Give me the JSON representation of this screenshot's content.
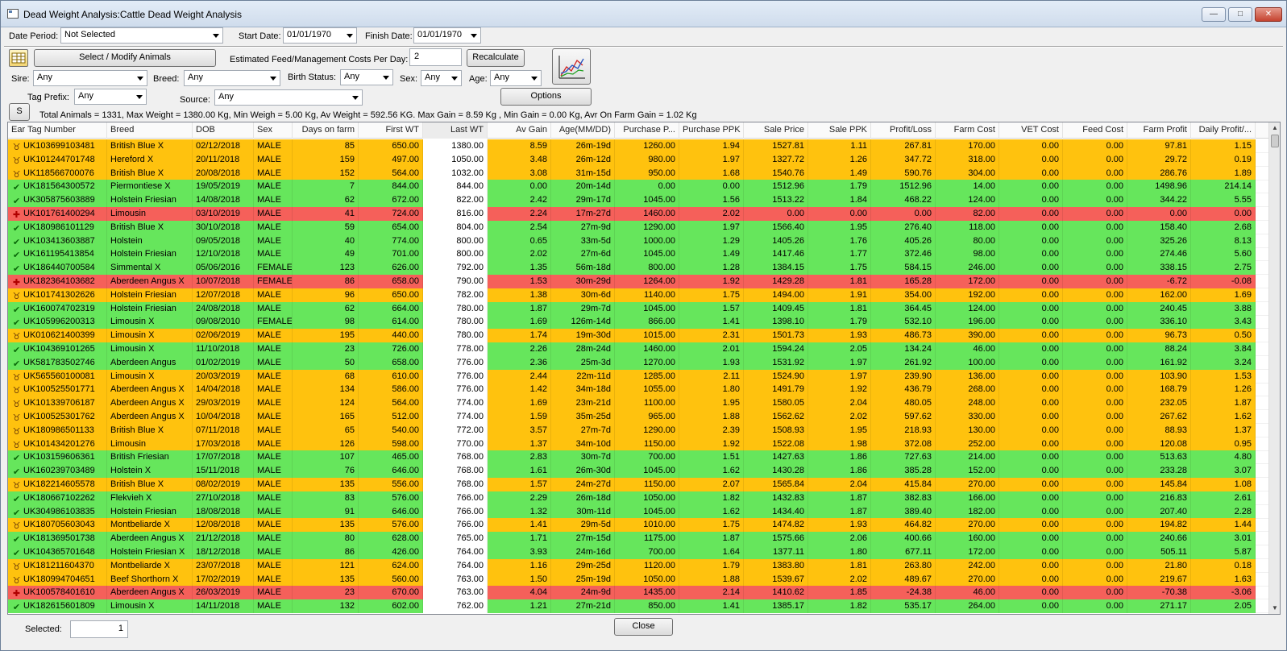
{
  "window": {
    "title": "Dead Weight Analysis:Cattle Dead Weight Analysis",
    "minimize_label": "—",
    "maximize_label": "□",
    "close_label": "✕"
  },
  "filters": {
    "date_period_label": "Date Period:",
    "date_period_value": "Not Selected",
    "start_date_label": "Start Date:",
    "start_date_value": "01/01/1970",
    "finish_date_label": "Finish Date:",
    "finish_date_value": "01/01/1970",
    "select_modify_label": "Select / Modify Animals",
    "est_costs_label": "Estimated Feed/Management Costs Per Day:",
    "est_costs_value": "2",
    "recalculate_label": "Recalculate",
    "sire_label": "Sire:",
    "sire_value": "Any",
    "breed_label": "Breed:",
    "breed_value": "Any",
    "birth_status_label": "Birth Status:",
    "birth_status_value": "Any",
    "sex_label": "Sex:",
    "sex_value": "Any",
    "age_label": "Age:",
    "age_value": "Any",
    "tag_prefix_label": "Tag Prefix:",
    "tag_prefix_value": "Any",
    "source_label": "Source:",
    "source_value": "Any",
    "options_label": "Options",
    "s_label": "S",
    "summary": "Total Animals = 1331, Max Weight = 1380.00 Kg, Min Weigh = 5.00 Kg, Av Weight = 592.56 KG. Max Gain = 8.59 Kg , Min Gain = 0.00 Kg, Avr On Farm Gain = 1.02 Kg"
  },
  "grid": {
    "columns": [
      "Ear Tag Number",
      "Breed",
      "DOB",
      "Sex",
      "Days on farm",
      "First WT",
      "Last WT",
      "Av Gain",
      "Age(MM/DD)",
      "Purchase P...",
      "Purchase PPK",
      "Sale Price",
      "Sale PPK",
      "Profit/Loss",
      "Farm Cost",
      "VET Cost",
      "Feed Cost",
      "Farm Profit",
      "Daily Profit/..."
    ],
    "colors": {
      "orange": "#ffc20e",
      "green": "#66e65c",
      "red": "#f5605a"
    },
    "rows": [
      {
        "s": "orange",
        "i": "cow",
        "c": [
          "UK103699103481",
          "British Blue X",
          "02/12/2018",
          "MALE",
          "85",
          "650.00",
          "1380.00",
          "8.59",
          "26m-19d",
          "1260.00",
          "1.94",
          "1527.81",
          "1.11",
          "267.81",
          "170.00",
          "0.00",
          "0.00",
          "97.81",
          "1.15"
        ]
      },
      {
        "s": "orange",
        "i": "cow",
        "c": [
          "UK101244701748",
          "Hereford X",
          "20/11/2018",
          "MALE",
          "159",
          "497.00",
          "1050.00",
          "3.48",
          "26m-12d",
          "980.00",
          "1.97",
          "1327.72",
          "1.26",
          "347.72",
          "318.00",
          "0.00",
          "0.00",
          "29.72",
          "0.19"
        ]
      },
      {
        "s": "orange",
        "i": "cow",
        "c": [
          "UK118566700076",
          "British Blue X",
          "20/08/2018",
          "MALE",
          "152",
          "564.00",
          "1032.00",
          "3.08",
          "31m-15d",
          "950.00",
          "1.68",
          "1540.76",
          "1.49",
          "590.76",
          "304.00",
          "0.00",
          "0.00",
          "286.76",
          "1.89"
        ]
      },
      {
        "s": "green",
        "i": "check",
        "c": [
          "UK181564300572",
          "Piermontiese X",
          "19/05/2019",
          "MALE",
          "7",
          "844.00",
          "844.00",
          "0.00",
          "20m-14d",
          "0.00",
          "0.00",
          "1512.96",
          "1.79",
          "1512.96",
          "14.00",
          "0.00",
          "0.00",
          "1498.96",
          "214.14"
        ]
      },
      {
        "s": "green",
        "i": "check",
        "c": [
          "UK305875603889",
          "Holstein Friesian",
          "14/08/2018",
          "MALE",
          "62",
          "672.00",
          "822.00",
          "2.42",
          "29m-17d",
          "1045.00",
          "1.56",
          "1513.22",
          "1.84",
          "468.22",
          "124.00",
          "0.00",
          "0.00",
          "344.22",
          "5.55"
        ]
      },
      {
        "s": "red",
        "i": "dead",
        "c": [
          "UK101761400294",
          "Limousin",
          "03/10/2019",
          "MALE",
          "41",
          "724.00",
          "816.00",
          "2.24",
          "17m-27d",
          "1460.00",
          "2.02",
          "0.00",
          "0.00",
          "0.00",
          "82.00",
          "0.00",
          "0.00",
          "0.00",
          "0.00"
        ]
      },
      {
        "s": "green",
        "i": "check",
        "c": [
          "UK180986101129",
          "British Blue X",
          "30/10/2018",
          "MALE",
          "59",
          "654.00",
          "804.00",
          "2.54",
          "27m-9d",
          "1290.00",
          "1.97",
          "1566.40",
          "1.95",
          "276.40",
          "118.00",
          "0.00",
          "0.00",
          "158.40",
          "2.68"
        ]
      },
      {
        "s": "green",
        "i": "check",
        "c": [
          "UK103413603887",
          "Holstein",
          "09/05/2018",
          "MALE",
          "40",
          "774.00",
          "800.00",
          "0.65",
          "33m-5d",
          "1000.00",
          "1.29",
          "1405.26",
          "1.76",
          "405.26",
          "80.00",
          "0.00",
          "0.00",
          "325.26",
          "8.13"
        ]
      },
      {
        "s": "green",
        "i": "check",
        "c": [
          "UK161195413854",
          "Holstein Friesian",
          "12/10/2018",
          "MALE",
          "49",
          "701.00",
          "800.00",
          "2.02",
          "27m-6d",
          "1045.00",
          "1.49",
          "1417.46",
          "1.77",
          "372.46",
          "98.00",
          "0.00",
          "0.00",
          "274.46",
          "5.60"
        ]
      },
      {
        "s": "green",
        "i": "check",
        "c": [
          "UK186440700584",
          "Simmental X",
          "05/06/2016",
          "FEMALE",
          "123",
          "626.00",
          "792.00",
          "1.35",
          "56m-18d",
          "800.00",
          "1.28",
          "1384.15",
          "1.75",
          "584.15",
          "246.00",
          "0.00",
          "0.00",
          "338.15",
          "2.75"
        ]
      },
      {
        "s": "red",
        "i": "dead",
        "c": [
          "UK182364103682",
          "Aberdeen Angus X",
          "10/07/2018",
          "FEMALE",
          "86",
          "658.00",
          "790.00",
          "1.53",
          "30m-29d",
          "1264.00",
          "1.92",
          "1429.28",
          "1.81",
          "165.28",
          "172.00",
          "0.00",
          "0.00",
          "-6.72",
          "-0.08"
        ]
      },
      {
        "s": "orange",
        "i": "cow",
        "c": [
          "UK101741302626",
          "Holstein Friesian",
          "12/07/2018",
          "MALE",
          "96",
          "650.00",
          "782.00",
          "1.38",
          "30m-6d",
          "1140.00",
          "1.75",
          "1494.00",
          "1.91",
          "354.00",
          "192.00",
          "0.00",
          "0.00",
          "162.00",
          "1.69"
        ]
      },
      {
        "s": "green",
        "i": "check",
        "c": [
          "UK160074702319",
          "Holstein Friesian",
          "24/08/2018",
          "MALE",
          "62",
          "664.00",
          "780.00",
          "1.87",
          "29m-7d",
          "1045.00",
          "1.57",
          "1409.45",
          "1.81",
          "364.45",
          "124.00",
          "0.00",
          "0.00",
          "240.45",
          "3.88"
        ]
      },
      {
        "s": "green",
        "i": "check",
        "c": [
          "UK105996200313",
          "Limousin X",
          "09/08/2010",
          "FEMALE",
          "98",
          "614.00",
          "780.00",
          "1.69",
          "126m-14d",
          "866.00",
          "1.41",
          "1398.10",
          "1.79",
          "532.10",
          "196.00",
          "0.00",
          "0.00",
          "336.10",
          "3.43"
        ]
      },
      {
        "s": "orange",
        "i": "cow",
        "c": [
          "UK010621400399",
          "Limousin X",
          "02/06/2019",
          "MALE",
          "195",
          "440.00",
          "780.00",
          "1.74",
          "19m-30d",
          "1015.00",
          "2.31",
          "1501.73",
          "1.93",
          "486.73",
          "390.00",
          "0.00",
          "0.00",
          "96.73",
          "0.50"
        ]
      },
      {
        "s": "green",
        "i": "check",
        "c": [
          "UK104369101265",
          "Limousin X",
          "11/10/2018",
          "MALE",
          "23",
          "726.00",
          "778.00",
          "2.26",
          "28m-24d",
          "1460.00",
          "2.01",
          "1594.24",
          "2.05",
          "134.24",
          "46.00",
          "0.00",
          "0.00",
          "88.24",
          "3.84"
        ]
      },
      {
        "s": "green",
        "i": "check",
        "c": [
          "UK581783502746",
          "Aberdeen Angus",
          "01/02/2019",
          "MALE",
          "50",
          "658.00",
          "776.00",
          "2.36",
          "25m-3d",
          "1270.00",
          "1.93",
          "1531.92",
          "1.97",
          "261.92",
          "100.00",
          "0.00",
          "0.00",
          "161.92",
          "3.24"
        ]
      },
      {
        "s": "orange",
        "i": "cow",
        "c": [
          "UK565560100081",
          "Limousin X",
          "20/03/2019",
          "MALE",
          "68",
          "610.00",
          "776.00",
          "2.44",
          "22m-11d",
          "1285.00",
          "2.11",
          "1524.90",
          "1.97",
          "239.90",
          "136.00",
          "0.00",
          "0.00",
          "103.90",
          "1.53"
        ]
      },
      {
        "s": "orange",
        "i": "cow",
        "c": [
          "UK100525501771",
          "Aberdeen Angus X",
          "14/04/2018",
          "MALE",
          "134",
          "586.00",
          "776.00",
          "1.42",
          "34m-18d",
          "1055.00",
          "1.80",
          "1491.79",
          "1.92",
          "436.79",
          "268.00",
          "0.00",
          "0.00",
          "168.79",
          "1.26"
        ]
      },
      {
        "s": "orange",
        "i": "cow",
        "c": [
          "UK101339706187",
          "Aberdeen Angus X",
          "29/03/2019",
          "MALE",
          "124",
          "564.00",
          "774.00",
          "1.69",
          "23m-21d",
          "1100.00",
          "1.95",
          "1580.05",
          "2.04",
          "480.05",
          "248.00",
          "0.00",
          "0.00",
          "232.05",
          "1.87"
        ]
      },
      {
        "s": "orange",
        "i": "cow",
        "c": [
          "UK100525301762",
          "Aberdeen Angus X",
          "10/04/2018",
          "MALE",
          "165",
          "512.00",
          "774.00",
          "1.59",
          "35m-25d",
          "965.00",
          "1.88",
          "1562.62",
          "2.02",
          "597.62",
          "330.00",
          "0.00",
          "0.00",
          "267.62",
          "1.62"
        ]
      },
      {
        "s": "orange",
        "i": "cow",
        "c": [
          "UK180986501133",
          "British Blue X",
          "07/11/2018",
          "MALE",
          "65",
          "540.00",
          "772.00",
          "3.57",
          "27m-7d",
          "1290.00",
          "2.39",
          "1508.93",
          "1.95",
          "218.93",
          "130.00",
          "0.00",
          "0.00",
          "88.93",
          "1.37"
        ]
      },
      {
        "s": "orange",
        "i": "cow",
        "c": [
          "UK101434201276",
          "Limousin",
          "17/03/2018",
          "MALE",
          "126",
          "598.00",
          "770.00",
          "1.37",
          "34m-10d",
          "1150.00",
          "1.92",
          "1522.08",
          "1.98",
          "372.08",
          "252.00",
          "0.00",
          "0.00",
          "120.08",
          "0.95"
        ]
      },
      {
        "s": "green",
        "i": "check",
        "c": [
          "UK103159606361",
          "British Friesian",
          "17/07/2018",
          "MALE",
          "107",
          "465.00",
          "768.00",
          "2.83",
          "30m-7d",
          "700.00",
          "1.51",
          "1427.63",
          "1.86",
          "727.63",
          "214.00",
          "0.00",
          "0.00",
          "513.63",
          "4.80"
        ]
      },
      {
        "s": "green",
        "i": "check",
        "c": [
          "UK160239703489",
          "Holstein X",
          "15/11/2018",
          "MALE",
          "76",
          "646.00",
          "768.00",
          "1.61",
          "26m-30d",
          "1045.00",
          "1.62",
          "1430.28",
          "1.86",
          "385.28",
          "152.00",
          "0.00",
          "0.00",
          "233.28",
          "3.07"
        ]
      },
      {
        "s": "orange",
        "i": "cow",
        "c": [
          "UK182214605578",
          "British Blue X",
          "08/02/2019",
          "MALE",
          "135",
          "556.00",
          "768.00",
          "1.57",
          "24m-27d",
          "1150.00",
          "2.07",
          "1565.84",
          "2.04",
          "415.84",
          "270.00",
          "0.00",
          "0.00",
          "145.84",
          "1.08"
        ]
      },
      {
        "s": "green",
        "i": "check",
        "c": [
          "UK180667102262",
          "Flekvieh X",
          "27/10/2018",
          "MALE",
          "83",
          "576.00",
          "766.00",
          "2.29",
          "26m-18d",
          "1050.00",
          "1.82",
          "1432.83",
          "1.87",
          "382.83",
          "166.00",
          "0.00",
          "0.00",
          "216.83",
          "2.61"
        ]
      },
      {
        "s": "green",
        "i": "check",
        "c": [
          "UK304986103835",
          "Holstein Friesian",
          "18/08/2018",
          "MALE",
          "91",
          "646.00",
          "766.00",
          "1.32",
          "30m-11d",
          "1045.00",
          "1.62",
          "1434.40",
          "1.87",
          "389.40",
          "182.00",
          "0.00",
          "0.00",
          "207.40",
          "2.28"
        ]
      },
      {
        "s": "orange",
        "i": "cow",
        "c": [
          "UK180705603043",
          "Montbeliarde X",
          "12/08/2018",
          "MALE",
          "135",
          "576.00",
          "766.00",
          "1.41",
          "29m-5d",
          "1010.00",
          "1.75",
          "1474.82",
          "1.93",
          "464.82",
          "270.00",
          "0.00",
          "0.00",
          "194.82",
          "1.44"
        ]
      },
      {
        "s": "green",
        "i": "check",
        "c": [
          "UK181369501738",
          "Aberdeen Angus X",
          "21/12/2018",
          "MALE",
          "80",
          "628.00",
          "765.00",
          "1.71",
          "27m-15d",
          "1175.00",
          "1.87",
          "1575.66",
          "2.06",
          "400.66",
          "160.00",
          "0.00",
          "0.00",
          "240.66",
          "3.01"
        ]
      },
      {
        "s": "green",
        "i": "check",
        "c": [
          "UK104365701648",
          "Holstein Friesian X",
          "18/12/2018",
          "MALE",
          "86",
          "426.00",
          "764.00",
          "3.93",
          "24m-16d",
          "700.00",
          "1.64",
          "1377.11",
          "1.80",
          "677.11",
          "172.00",
          "0.00",
          "0.00",
          "505.11",
          "5.87"
        ]
      },
      {
        "s": "orange",
        "i": "cow",
        "c": [
          "UK181211604370",
          "Montbeliarde X",
          "23/07/2018",
          "MALE",
          "121",
          "624.00",
          "764.00",
          "1.16",
          "29m-25d",
          "1120.00",
          "1.79",
          "1383.80",
          "1.81",
          "263.80",
          "242.00",
          "0.00",
          "0.00",
          "21.80",
          "0.18"
        ]
      },
      {
        "s": "orange",
        "i": "cow",
        "c": [
          "UK180994704651",
          "Beef Shorthorn X",
          "17/02/2019",
          "MALE",
          "135",
          "560.00",
          "763.00",
          "1.50",
          "25m-19d",
          "1050.00",
          "1.88",
          "1539.67",
          "2.02",
          "489.67",
          "270.00",
          "0.00",
          "0.00",
          "219.67",
          "1.63"
        ]
      },
      {
        "s": "red",
        "i": "dead",
        "c": [
          "UK100578401610",
          "Aberdeen Angus X",
          "26/03/2019",
          "MALE",
          "23",
          "670.00",
          "763.00",
          "4.04",
          "24m-9d",
          "1435.00",
          "2.14",
          "1410.62",
          "1.85",
          "-24.38",
          "46.00",
          "0.00",
          "0.00",
          "-70.38",
          "-3.06"
        ]
      },
      {
        "s": "green",
        "i": "check",
        "c": [
          "UK182615601809",
          "Limousin X",
          "14/11/2018",
          "MALE",
          "132",
          "602.00",
          "762.00",
          "1.21",
          "27m-21d",
          "850.00",
          "1.41",
          "1385.17",
          "1.82",
          "535.17",
          "264.00",
          "0.00",
          "0.00",
          "271.17",
          "2.05"
        ]
      }
    ]
  },
  "footer": {
    "selected_label": "Selected:",
    "selected_value": "1",
    "close_label": "Close"
  }
}
